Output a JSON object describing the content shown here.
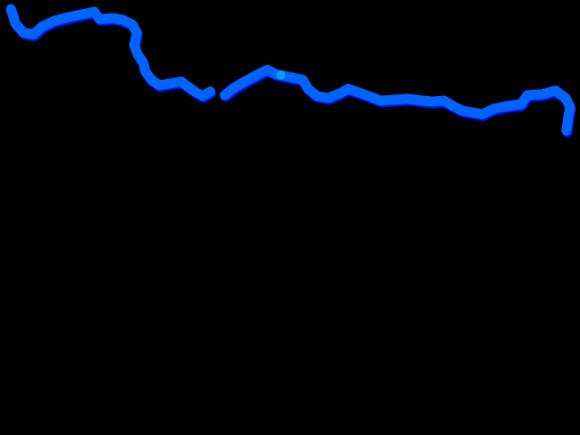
{
  "scene": {
    "background_color": "#000000",
    "trail": {
      "primary_color": "#0062ff",
      "shadow_color": "#0010ff",
      "highlight_color": "#0a9cff",
      "segments": 2
    }
  }
}
